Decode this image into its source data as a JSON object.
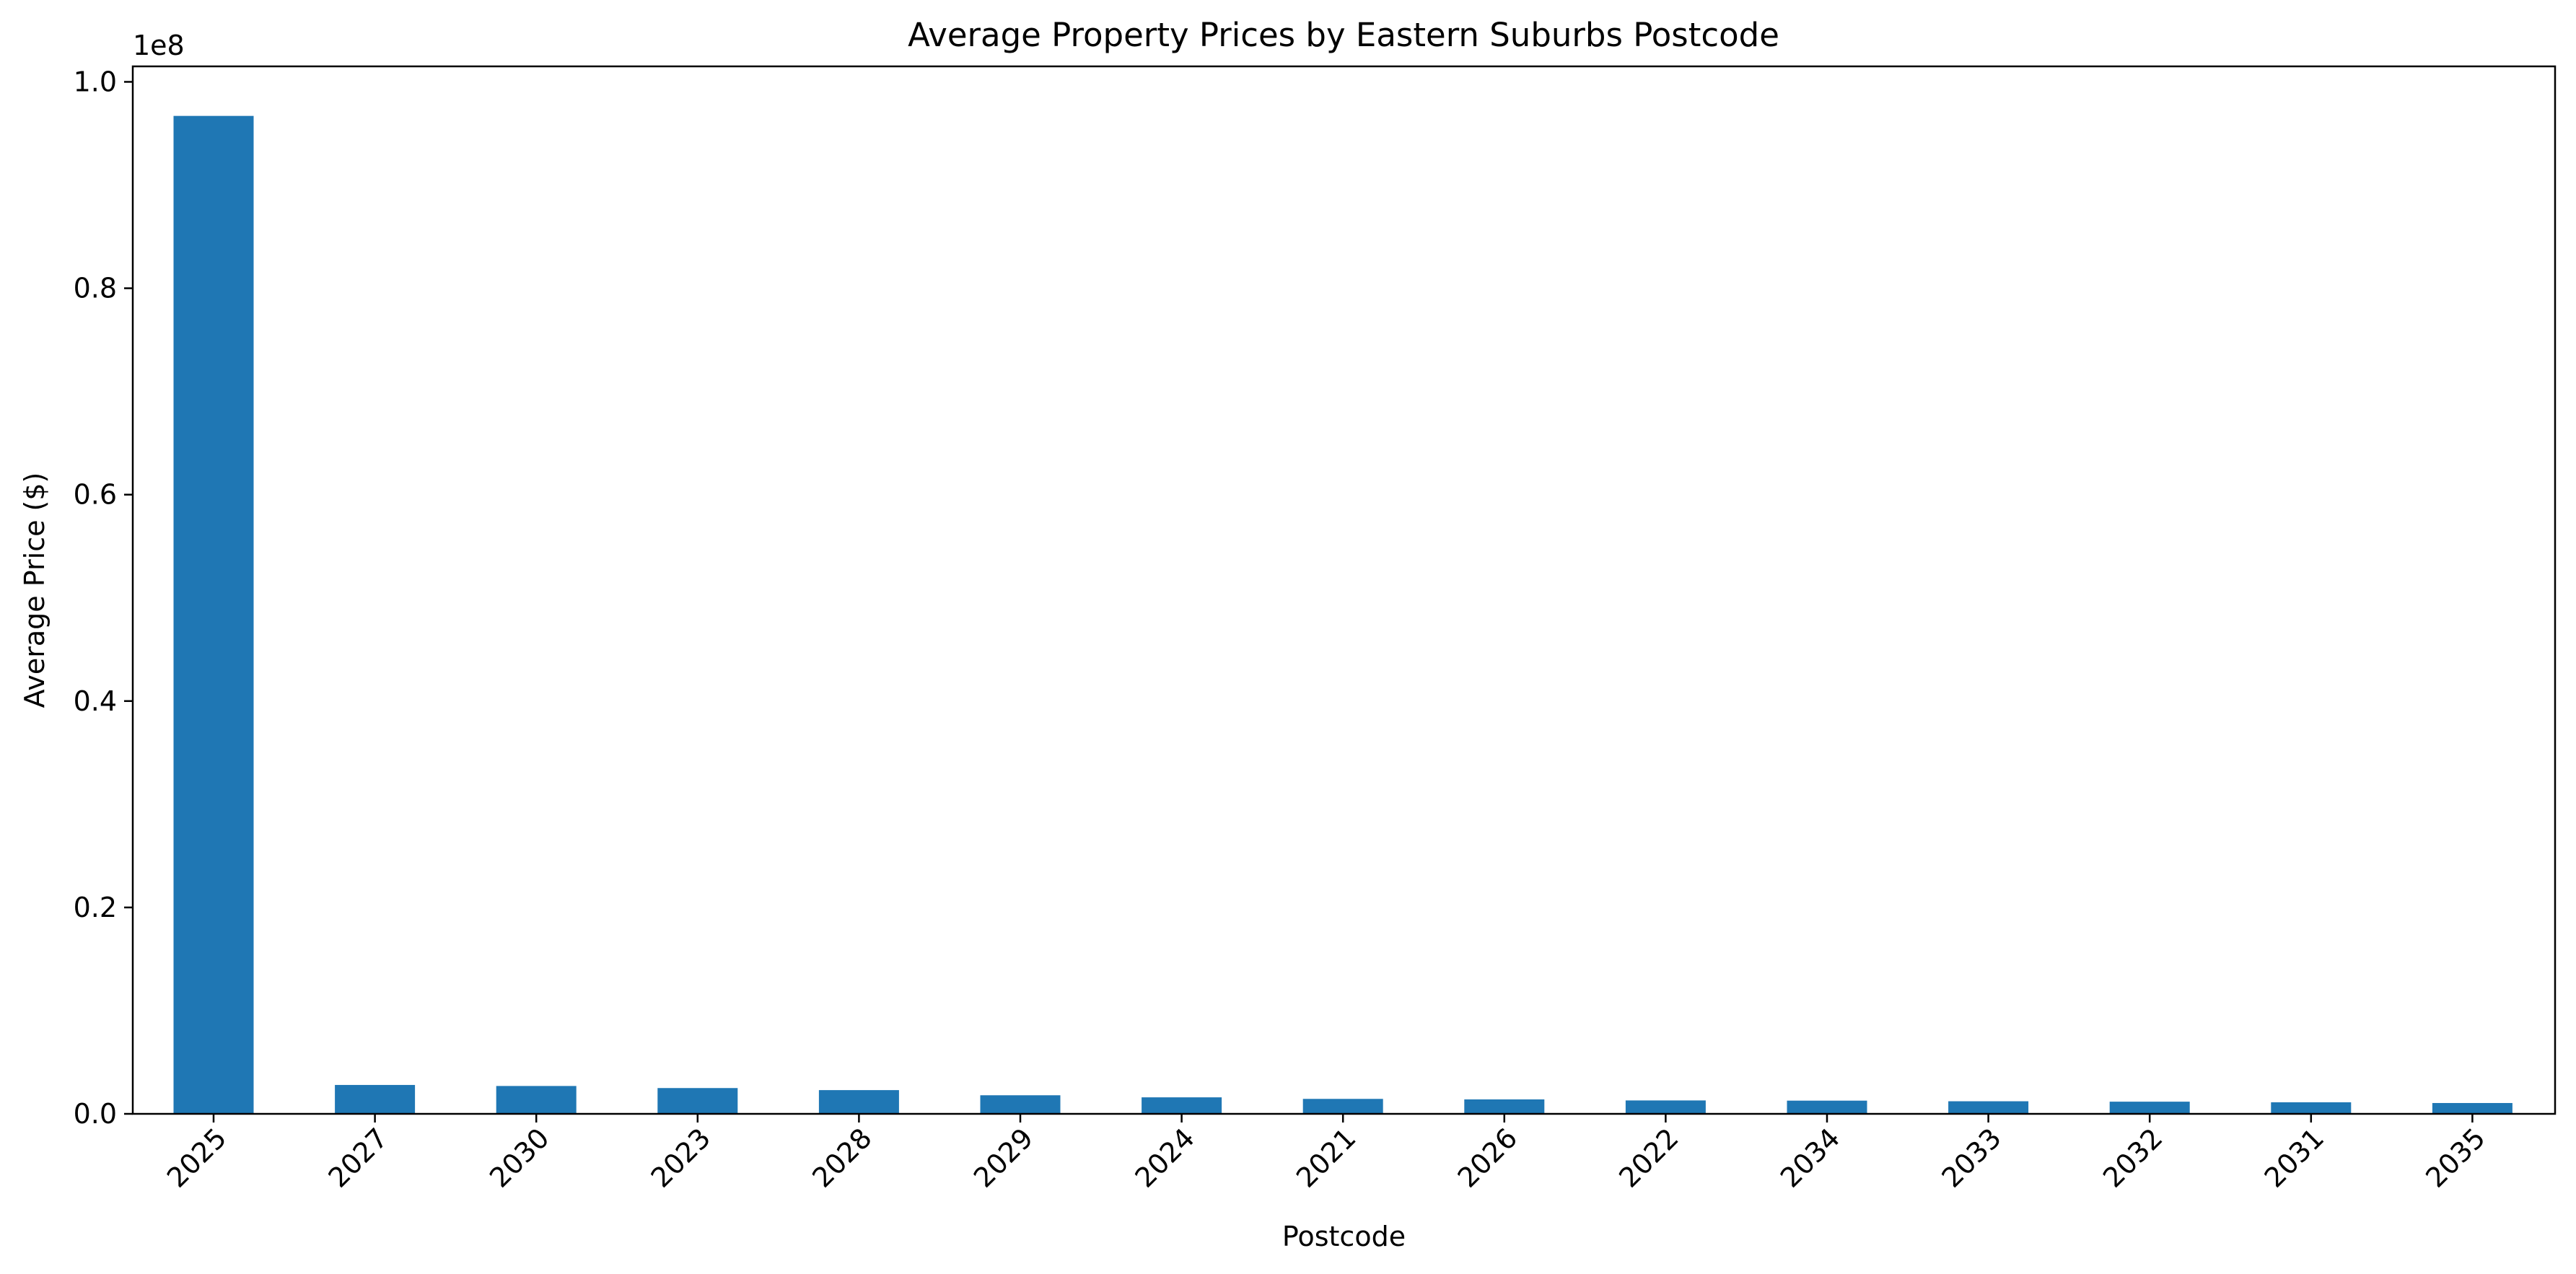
{
  "chart_data": {
    "type": "bar",
    "title": "Average Property Prices by Eastern Suburbs Postcode",
    "xlabel": "Postcode",
    "ylabel": "Average Price ($)",
    "y_offset_label": "1e8",
    "categories": [
      "2025",
      "2027",
      "2030",
      "2023",
      "2028",
      "2029",
      "2024",
      "2021",
      "2026",
      "2022",
      "2034",
      "2033",
      "2032",
      "2031",
      "2035"
    ],
    "values": [
      96700000,
      2800000,
      2700000,
      2500000,
      2300000,
      1800000,
      1600000,
      1450000,
      1400000,
      1300000,
      1280000,
      1220000,
      1180000,
      1120000,
      1050000
    ],
    "ylim": [
      0,
      101500000
    ],
    "yticks": [
      0,
      20000000,
      40000000,
      60000000,
      80000000,
      100000000
    ],
    "ytick_labels": [
      "0.0",
      "0.2",
      "0.4",
      "0.6",
      "0.8",
      "1.0"
    ],
    "bar_color": "#1f77b4",
    "grid": false,
    "legend": "none"
  }
}
